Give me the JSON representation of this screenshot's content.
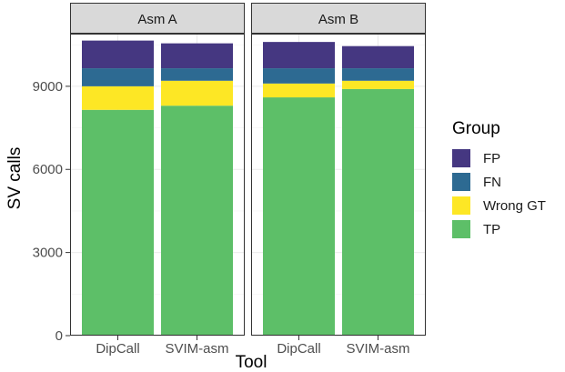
{
  "chart_data": {
    "type": "bar",
    "stacked": true,
    "xlabel": "Tool",
    "ylabel": "SV calls",
    "ylim": [
      0,
      10900
    ],
    "yticks": [
      0,
      3000,
      6000,
      9000
    ],
    "categories": [
      "DipCall",
      "SVIM-asm"
    ],
    "legend": {
      "title": "Group",
      "position": "right",
      "order": [
        "FP",
        "FN",
        "Wrong GT",
        "TP"
      ]
    },
    "colors": {
      "FP": "#453781",
      "FN": "#2D6A92",
      "Wrong GT": "#FDE725",
      "TP": "#5DBF68"
    },
    "panels": [
      {
        "title": "Asm A",
        "bars": [
          {
            "category": "DipCall",
            "TP": 8150,
            "Wrong GT": 850,
            "FN": 650,
            "FP": 1000
          },
          {
            "category": "SVIM-asm",
            "TP": 8300,
            "Wrong GT": 900,
            "FN": 450,
            "FP": 900
          }
        ]
      },
      {
        "title": "Asm B",
        "bars": [
          {
            "category": "DipCall",
            "TP": 8600,
            "Wrong GT": 500,
            "FN": 550,
            "FP": 950
          },
          {
            "category": "SVIM-asm",
            "TP": 8900,
            "Wrong GT": 300,
            "FN": 450,
            "FP": 800
          }
        ]
      }
    ]
  }
}
